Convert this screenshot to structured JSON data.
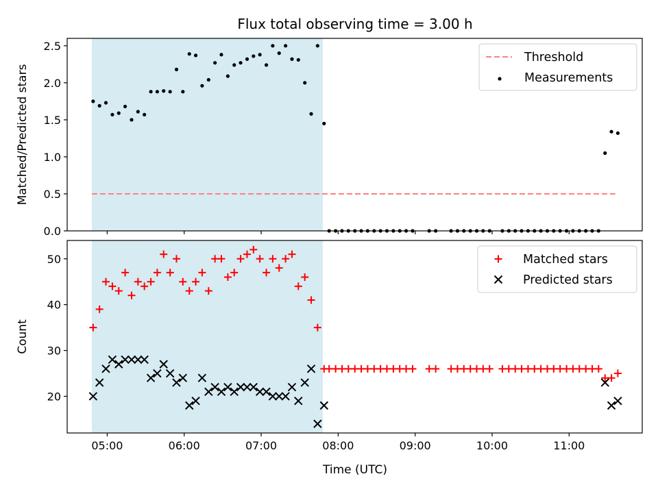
{
  "chart_data": {
    "type": "scatter",
    "title": "Flux total observing time = 3.00 h",
    "xlabel": "Time (UTC)",
    "x_unit": "UTC hours",
    "xlim": [
      4.48,
      11.95
    ],
    "x_ticks": [
      {
        "value": 5,
        "label": "05:00"
      },
      {
        "value": 6,
        "label": "06:00"
      },
      {
        "value": 7,
        "label": "07:00"
      },
      {
        "value": 8,
        "label": "08:00"
      },
      {
        "value": 9,
        "label": "09:00"
      },
      {
        "value": 10,
        "label": "10:00"
      },
      {
        "value": 11,
        "label": "11:00"
      }
    ],
    "shaded_span": {
      "start": 4.8,
      "end": 7.8,
      "color": "#add8e6"
    },
    "panels": [
      {
        "id": "ratio",
        "ylabel": "Matched/Predicted stars",
        "ylim": [
          0,
          2.6
        ],
        "y_ticks": [
          0.0,
          0.5,
          1.0,
          1.5,
          2.0,
          2.5
        ],
        "y_tick_labels": [
          "0.0",
          "0.5",
          "1.0",
          "1.5",
          "2.0",
          "2.5"
        ],
        "legend": {
          "position": "upper right"
        },
        "series": [
          {
            "name": "Threshold",
            "kind": "dashed-line",
            "color": "#ff7f7f",
            "x": [
              4.8,
              11.6
            ],
            "y": [
              0.5,
              0.5
            ]
          },
          {
            "name": "Measurements",
            "kind": "dot",
            "color": "#000000",
            "points": [
              [
                4.817,
                1.75
              ],
              [
                4.9,
                1.69
              ],
              [
                4.983,
                1.73
              ],
              [
                5.067,
                1.57
              ],
              [
                5.15,
                1.59
              ],
              [
                5.233,
                1.68
              ],
              [
                5.317,
                1.5
              ],
              [
                5.4,
                1.61
              ],
              [
                5.483,
                1.57
              ],
              [
                5.567,
                1.88
              ],
              [
                5.65,
                1.88
              ],
              [
                5.733,
                1.89
              ],
              [
                5.817,
                1.88
              ],
              [
                5.9,
                2.18
              ],
              [
                5.983,
                1.88
              ],
              [
                6.067,
                2.39
              ],
              [
                6.15,
                2.37
              ],
              [
                6.233,
                1.96
              ],
              [
                6.317,
                2.04
              ],
              [
                6.4,
                2.27
              ],
              [
                6.483,
                2.38
              ],
              [
                6.567,
                2.09
              ],
              [
                6.65,
                2.24
              ],
              [
                6.733,
                2.27
              ],
              [
                6.817,
                2.32
              ],
              [
                6.9,
                2.36
              ],
              [
                6.983,
                2.38
              ],
              [
                7.067,
                2.24
              ],
              [
                7.15,
                2.5
              ],
              [
                7.233,
                2.4
              ],
              [
                7.317,
                2.5
              ],
              [
                7.4,
                2.32
              ],
              [
                7.483,
                2.31
              ],
              [
                7.567,
                2.0
              ],
              [
                7.65,
                1.58
              ],
              [
                7.733,
                2.5
              ],
              [
                7.817,
                1.45
              ],
              [
                7.883,
                0.0
              ],
              [
                7.967,
                0.0
              ],
              [
                8.05,
                0.0
              ],
              [
                8.133,
                0.0
              ],
              [
                8.217,
                0.0
              ],
              [
                8.3,
                0.0
              ],
              [
                8.383,
                0.0
              ],
              [
                8.467,
                0.0
              ],
              [
                8.55,
                0.0
              ],
              [
                8.633,
                0.0
              ],
              [
                8.717,
                0.0
              ],
              [
                8.8,
                0.0
              ],
              [
                8.883,
                0.0
              ],
              [
                8.967,
                0.0
              ],
              [
                9.183,
                0.0
              ],
              [
                9.267,
                0.0
              ],
              [
                9.467,
                0.0
              ],
              [
                9.55,
                0.0
              ],
              [
                9.633,
                0.0
              ],
              [
                9.717,
                0.0
              ],
              [
                9.8,
                0.0
              ],
              [
                9.883,
                0.0
              ],
              [
                9.967,
                0.0
              ],
              [
                10.133,
                0.0
              ],
              [
                10.217,
                0.0
              ],
              [
                10.3,
                0.0
              ],
              [
                10.383,
                0.0
              ],
              [
                10.467,
                0.0
              ],
              [
                10.55,
                0.0
              ],
              [
                10.633,
                0.0
              ],
              [
                10.717,
                0.0
              ],
              [
                10.8,
                0.0
              ],
              [
                10.883,
                0.0
              ],
              [
                10.967,
                0.0
              ],
              [
                11.05,
                0.0
              ],
              [
                11.133,
                0.0
              ],
              [
                11.217,
                0.0
              ],
              [
                11.3,
                0.0
              ],
              [
                11.383,
                0.0
              ],
              [
                11.467,
                1.05
              ],
              [
                11.55,
                1.34
              ],
              [
                11.633,
                1.32
              ]
            ]
          }
        ]
      },
      {
        "id": "count",
        "ylabel": "Count",
        "ylim": [
          12,
          54
        ],
        "y_ticks": [
          20,
          30,
          40,
          50
        ],
        "y_tick_labels": [
          "20",
          "30",
          "40",
          "50"
        ],
        "legend": {
          "position": "upper right"
        },
        "series": [
          {
            "name": "Matched stars",
            "kind": "plus",
            "color": "#ff0000",
            "points": [
              [
                4.817,
                35
              ],
              [
                4.9,
                39
              ],
              [
                4.983,
                45
              ],
              [
                5.067,
                44
              ],
              [
                5.15,
                43
              ],
              [
                5.233,
                47
              ],
              [
                5.317,
                42
              ],
              [
                5.4,
                45
              ],
              [
                5.483,
                44
              ],
              [
                5.567,
                45
              ],
              [
                5.65,
                47
              ],
              [
                5.733,
                51
              ],
              [
                5.817,
                47
              ],
              [
                5.9,
                50
              ],
              [
                5.983,
                45
              ],
              [
                6.067,
                43
              ],
              [
                6.15,
                45
              ],
              [
                6.233,
                47
              ],
              [
                6.317,
                43
              ],
              [
                6.4,
                50
              ],
              [
                6.483,
                50
              ],
              [
                6.567,
                46
              ],
              [
                6.65,
                47
              ],
              [
                6.733,
                50
              ],
              [
                6.817,
                51
              ],
              [
                6.9,
                52
              ],
              [
                6.983,
                50
              ],
              [
                7.067,
                47
              ],
              [
                7.15,
                50
              ],
              [
                7.233,
                48
              ],
              [
                7.317,
                50
              ],
              [
                7.4,
                51
              ],
              [
                7.483,
                44
              ],
              [
                7.567,
                46
              ],
              [
                7.65,
                41
              ],
              [
                7.733,
                35
              ],
              [
                7.817,
                26
              ],
              [
                7.883,
                26
              ],
              [
                7.967,
                26
              ],
              [
                8.05,
                26
              ],
              [
                8.133,
                26
              ],
              [
                8.217,
                26
              ],
              [
                8.3,
                26
              ],
              [
                8.383,
                26
              ],
              [
                8.467,
                26
              ],
              [
                8.55,
                26
              ],
              [
                8.633,
                26
              ],
              [
                8.717,
                26
              ],
              [
                8.8,
                26
              ],
              [
                8.883,
                26
              ],
              [
                8.967,
                26
              ],
              [
                9.183,
                26
              ],
              [
                9.267,
                26
              ],
              [
                9.467,
                26
              ],
              [
                9.55,
                26
              ],
              [
                9.633,
                26
              ],
              [
                9.717,
                26
              ],
              [
                9.8,
                26
              ],
              [
                9.883,
                26
              ],
              [
                9.967,
                26
              ],
              [
                10.133,
                26
              ],
              [
                10.217,
                26
              ],
              [
                10.3,
                26
              ],
              [
                10.383,
                26
              ],
              [
                10.467,
                26
              ],
              [
                10.55,
                26
              ],
              [
                10.633,
                26
              ],
              [
                10.717,
                26
              ],
              [
                10.8,
                26
              ],
              [
                10.883,
                26
              ],
              [
                10.967,
                26
              ],
              [
                11.05,
                26
              ],
              [
                11.133,
                26
              ],
              [
                11.217,
                26
              ],
              [
                11.3,
                26
              ],
              [
                11.383,
                26
              ],
              [
                11.467,
                24
              ],
              [
                11.55,
                24
              ],
              [
                11.633,
                25
              ]
            ]
          },
          {
            "name": "Predicted stars",
            "kind": "cross",
            "color": "#000000",
            "points": [
              [
                4.817,
                20
              ],
              [
                4.9,
                23
              ],
              [
                4.983,
                26
              ],
              [
                5.067,
                28
              ],
              [
                5.15,
                27
              ],
              [
                5.233,
                28
              ],
              [
                5.317,
                28
              ],
              [
                5.4,
                28
              ],
              [
                5.483,
                28
              ],
              [
                5.567,
                24
              ],
              [
                5.65,
                25
              ],
              [
                5.733,
                27
              ],
              [
                5.817,
                25
              ],
              [
                5.9,
                23
              ],
              [
                5.983,
                24
              ],
              [
                6.067,
                18
              ],
              [
                6.15,
                19
              ],
              [
                6.233,
                24
              ],
              [
                6.317,
                21
              ],
              [
                6.4,
                22
              ],
              [
                6.483,
                21
              ],
              [
                6.567,
                22
              ],
              [
                6.65,
                21
              ],
              [
                6.733,
                22
              ],
              [
                6.817,
                22
              ],
              [
                6.9,
                22
              ],
              [
                6.983,
                21
              ],
              [
                7.067,
                21
              ],
              [
                7.15,
                20
              ],
              [
                7.233,
                20
              ],
              [
                7.317,
                20
              ],
              [
                7.4,
                22
              ],
              [
                7.483,
                19
              ],
              [
                7.567,
                23
              ],
              [
                7.65,
                26
              ],
              [
                7.733,
                14
              ],
              [
                7.817,
                18
              ],
              [
                11.467,
                23
              ],
              [
                11.55,
                18
              ],
              [
                11.633,
                19
              ]
            ]
          }
        ]
      }
    ]
  }
}
